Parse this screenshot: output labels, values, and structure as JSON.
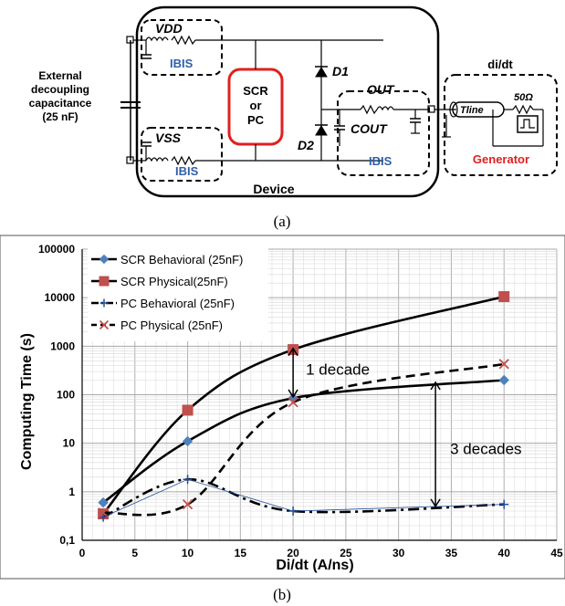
{
  "circuit": {
    "caption": "(a)",
    "external_label": [
      "External",
      "decoupling",
      "capacitance",
      "(25 nF)"
    ],
    "vdd_label": "VDD",
    "vss_label": "VSS",
    "ibis_label": "IBIS",
    "scr_pc_label": [
      "SCR",
      "or",
      "PC"
    ],
    "d1_label": "D1",
    "d2_label": "D2",
    "out_label": "OUT",
    "cout_label": "COUT",
    "device_label": "Device",
    "didt_label": "di/dt",
    "tline_label": "Tline",
    "resistor_label": "50Ω",
    "generator_label": "Generator",
    "colors": {
      "ibis": "#2f5fa8",
      "scr_box": "#e02020",
      "generator": "#e02020"
    }
  },
  "chart_data": {
    "type": "line",
    "caption": "(b)",
    "xlabel": "Di/dt (A/ns)",
    "ylabel": "Computing Time (s)",
    "x_ticks": [
      "0",
      "5",
      "10",
      "15",
      "20",
      "25",
      "30",
      "35",
      "40",
      "45"
    ],
    "y_ticks": [
      "0,1",
      "1",
      "10",
      "100",
      "1000",
      "10000",
      "100000"
    ],
    "xlim": [
      0,
      45
    ],
    "ylim": [
      0.1,
      100000
    ],
    "y_scale": "log",
    "grid": true,
    "legend_position": "top-left",
    "series": [
      {
        "name": "SCR Behavioral (25nF)",
        "x": [
          2,
          10,
          20,
          40
        ],
        "y": [
          0.6,
          11,
          85,
          200
        ],
        "color": "#4f81bd",
        "marker": "diamond",
        "line": "solid"
      },
      {
        "name": "SCR Physical(25nF)",
        "x": [
          2,
          10,
          20,
          40
        ],
        "y": [
          0.35,
          48,
          850,
          10500
        ],
        "color": "#c0504d",
        "marker": "square",
        "line": "solid"
      },
      {
        "name": "PC Behavioral (25nF)",
        "x": [
          2,
          10,
          20,
          40
        ],
        "y": [
          0.3,
          1.8,
          0.4,
          0.55
        ],
        "color": "#1f4e9a",
        "marker": "plus",
        "line": "dashdot"
      },
      {
        "name": "PC Physical (25nF)",
        "x": [
          2,
          10,
          20,
          40
        ],
        "y": [
          0.37,
          0.55,
          70,
          430
        ],
        "color": "#c0504d",
        "marker": "x",
        "line": "dashed"
      }
    ],
    "annotations": [
      {
        "text": "1 decade",
        "x": 20,
        "y_from": 900,
        "y_to": 90
      },
      {
        "text": "3 decades",
        "x": 33.5,
        "y_from": 180,
        "y_to": 0.5
      }
    ]
  }
}
